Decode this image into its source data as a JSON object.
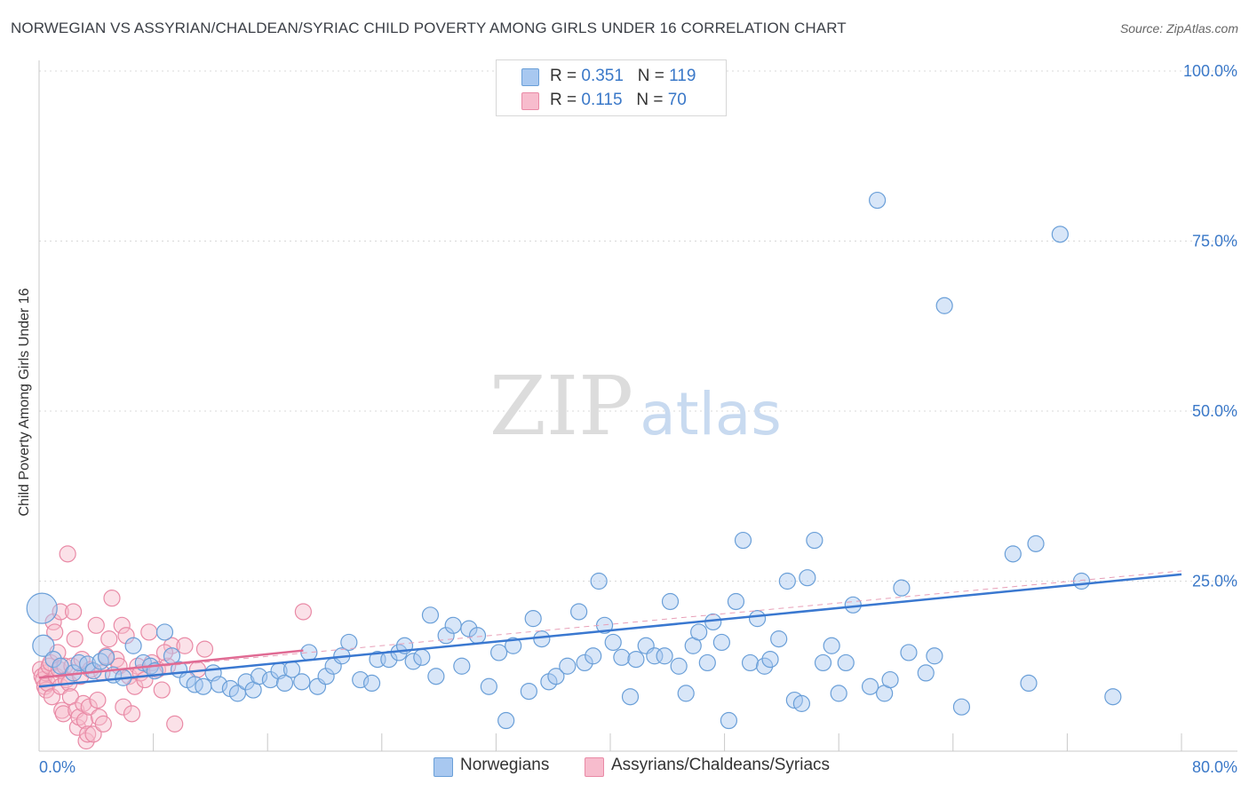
{
  "title": "NORWEGIAN VS ASSYRIAN/CHALDEAN/SYRIAC CHILD POVERTY AMONG GIRLS UNDER 16 CORRELATION CHART",
  "source": "Source: ZipAtlas.com",
  "watermark": {
    "zip": "ZIP",
    "atlas": "atlas"
  },
  "legend": {
    "r_label": "R = ",
    "n_label": "N = ",
    "rows": [
      {
        "r": "0.351",
        "n": "119",
        "color": "#a8c8f0",
        "stroke": "#6a9fd8"
      },
      {
        "r": "0.115",
        "n": "70",
        "color": "#f7bccd",
        "stroke": "#e98aa6"
      }
    ]
  },
  "bottom_legend": [
    {
      "label": "Norwegians",
      "color": "#a8c8f0",
      "stroke": "#6a9fd8"
    },
    {
      "label": "Assyrians/Chaldeans/Syriacs",
      "color": "#f7bccd",
      "stroke": "#e98aa6"
    }
  ],
  "chart_data": {
    "type": "scatter",
    "title": "NORWEGIAN VS ASSYRIAN/CHALDEAN/SYRIAC CHILD POVERTY AMONG GIRLS UNDER 16 CORRELATION CHART",
    "xlabel": "",
    "ylabel": "Child Poverty Among Girls Under 16",
    "xlim": [
      0,
      80
    ],
    "ylim": [
      0,
      100
    ],
    "x_tick_labels": [
      "0.0%",
      "80.0%"
    ],
    "y_tick_labels": [
      {
        "value": 25,
        "label": "25.0%"
      },
      {
        "value": 50,
        "label": "50.0%"
      },
      {
        "value": 75,
        "label": "75.0%"
      },
      {
        "value": 100,
        "label": "100.0%"
      }
    ],
    "grid": true,
    "series": [
      {
        "name": "Norwegians",
        "color": "#6a9fd8",
        "fill": "#a8c8f0",
        "trend": {
          "x0": 0,
          "y0": 9.5,
          "x1": 80,
          "y1": 26.0,
          "color": "#3a78d0"
        },
        "points": [
          [
            0.2,
            21.0
          ],
          [
            0.3,
            15.5
          ],
          [
            1.0,
            13.5
          ],
          [
            1.5,
            12.5
          ],
          [
            2.4,
            11.5
          ],
          [
            2.8,
            13.0
          ],
          [
            3.4,
            12.8
          ],
          [
            3.8,
            11.8
          ],
          [
            4.3,
            13.2
          ],
          [
            4.7,
            13.8
          ],
          [
            5.2,
            11.2
          ],
          [
            5.9,
            10.8
          ],
          [
            6.6,
            15.5
          ],
          [
            7.3,
            13.0
          ],
          [
            7.8,
            12.5
          ],
          [
            8.1,
            11.8
          ],
          [
            8.8,
            17.5
          ],
          [
            9.3,
            14.0
          ],
          [
            9.8,
            12.0
          ],
          [
            10.4,
            10.5
          ],
          [
            10.9,
            9.8
          ],
          [
            11.5,
            9.5
          ],
          [
            12.2,
            11.5
          ],
          [
            12.6,
            9.8
          ],
          [
            13.4,
            9.2
          ],
          [
            13.9,
            8.5
          ],
          [
            14.5,
            10.2
          ],
          [
            15.0,
            9.0
          ],
          [
            15.4,
            11.0
          ],
          [
            16.2,
            10.5
          ],
          [
            16.8,
            11.8
          ],
          [
            17.2,
            10.0
          ],
          [
            17.7,
            12.0
          ],
          [
            18.4,
            10.2
          ],
          [
            18.9,
            14.5
          ],
          [
            19.5,
            9.5
          ],
          [
            20.1,
            11.0
          ],
          [
            20.6,
            12.5
          ],
          [
            21.2,
            14.0
          ],
          [
            21.7,
            16.0
          ],
          [
            22.5,
            10.5
          ],
          [
            23.3,
            10.0
          ],
          [
            23.7,
            13.5
          ],
          [
            24.5,
            13.5
          ],
          [
            25.2,
            14.5
          ],
          [
            25.6,
            15.5
          ],
          [
            26.2,
            13.2
          ],
          [
            26.8,
            13.8
          ],
          [
            27.4,
            20.0
          ],
          [
            27.8,
            11.0
          ],
          [
            28.5,
            17.0
          ],
          [
            29.0,
            18.5
          ],
          [
            29.6,
            12.5
          ],
          [
            30.1,
            18.0
          ],
          [
            30.7,
            17.0
          ],
          [
            31.5,
            9.5
          ],
          [
            32.2,
            14.5
          ],
          [
            32.7,
            4.5
          ],
          [
            33.2,
            15.5
          ],
          [
            34.3,
            8.8
          ],
          [
            34.6,
            19.5
          ],
          [
            35.2,
            16.5
          ],
          [
            35.7,
            10.2
          ],
          [
            36.2,
            11.0
          ],
          [
            37.0,
            12.5
          ],
          [
            37.8,
            20.5
          ],
          [
            38.2,
            13.0
          ],
          [
            38.8,
            14.0
          ],
          [
            39.2,
            25.0
          ],
          [
            39.6,
            18.5
          ],
          [
            40.2,
            16.0
          ],
          [
            40.8,
            13.8
          ],
          [
            41.4,
            8.0
          ],
          [
            41.8,
            13.5
          ],
          [
            42.5,
            15.5
          ],
          [
            43.1,
            14.0
          ],
          [
            43.8,
            14.0
          ],
          [
            44.2,
            22.0
          ],
          [
            44.8,
            12.5
          ],
          [
            45.3,
            8.5
          ],
          [
            45.8,
            15.5
          ],
          [
            46.2,
            17.5
          ],
          [
            46.8,
            13.0
          ],
          [
            47.2,
            19.0
          ],
          [
            47.8,
            16.0
          ],
          [
            48.3,
            4.5
          ],
          [
            48.8,
            22.0
          ],
          [
            49.3,
            31.0
          ],
          [
            49.8,
            13.0
          ],
          [
            50.3,
            19.5
          ],
          [
            50.8,
            12.5
          ],
          [
            51.2,
            13.5
          ],
          [
            51.8,
            16.5
          ],
          [
            52.4,
            25.0
          ],
          [
            52.9,
            7.5
          ],
          [
            53.4,
            7.0
          ],
          [
            53.8,
            25.5
          ],
          [
            54.3,
            31.0
          ],
          [
            54.9,
            13.0
          ],
          [
            55.5,
            15.5
          ],
          [
            56.0,
            8.5
          ],
          [
            56.5,
            13.0
          ],
          [
            57.0,
            21.5
          ],
          [
            58.2,
            9.5
          ],
          [
            58.7,
            81.0
          ],
          [
            59.2,
            8.5
          ],
          [
            59.6,
            10.5
          ],
          [
            60.4,
            24.0
          ],
          [
            60.9,
            14.5
          ],
          [
            62.1,
            11.5
          ],
          [
            62.7,
            14.0
          ],
          [
            63.4,
            65.5
          ],
          [
            64.6,
            6.5
          ],
          [
            68.2,
            29.0
          ],
          [
            69.3,
            10.0
          ],
          [
            69.8,
            30.5
          ],
          [
            71.5,
            76.0
          ],
          [
            73.0,
            25.0
          ],
          [
            75.2,
            8.0
          ]
        ]
      },
      {
        "name": "Assyrians/Chaldeans/Syriacs",
        "color": "#e98aa6",
        "fill": "#f7bccd",
        "trend": {
          "x0": 0,
          "y0": 10.8,
          "x1": 18.5,
          "y1": 14.8,
          "color": "#e06a93",
          "dashed_extension_to": [
            80,
            26.5
          ]
        },
        "points": [
          [
            0.1,
            12.0
          ],
          [
            0.2,
            11.0
          ],
          [
            0.3,
            10.5
          ],
          [
            0.4,
            9.5
          ],
          [
            0.5,
            9.0
          ],
          [
            0.5,
            11.5
          ],
          [
            0.6,
            10.0
          ],
          [
            0.7,
            12.5
          ],
          [
            0.8,
            13.0
          ],
          [
            0.9,
            8.0
          ],
          [
            1.0,
            19.0
          ],
          [
            1.1,
            17.5
          ],
          [
            1.2,
            11.0
          ],
          [
            1.3,
            14.5
          ],
          [
            1.4,
            12.0
          ],
          [
            1.5,
            9.5
          ],
          [
            1.5,
            20.5
          ],
          [
            1.6,
            6.0
          ],
          [
            1.7,
            5.5
          ],
          [
            1.8,
            12.5
          ],
          [
            1.9,
            10.5
          ],
          [
            2.0,
            29.0
          ],
          [
            2.1,
            10.0
          ],
          [
            2.2,
            8.0
          ],
          [
            2.3,
            12.5
          ],
          [
            2.4,
            20.5
          ],
          [
            2.5,
            16.5
          ],
          [
            2.6,
            6.0
          ],
          [
            2.7,
            3.5
          ],
          [
            2.8,
            5.0
          ],
          [
            2.9,
            11.0
          ],
          [
            3.0,
            13.5
          ],
          [
            3.1,
            7.0
          ],
          [
            3.2,
            4.5
          ],
          [
            3.3,
            1.5
          ],
          [
            3.4,
            2.5
          ],
          [
            3.5,
            6.5
          ],
          [
            3.6,
            12.0
          ],
          [
            3.8,
            2.5
          ],
          [
            4.0,
            18.5
          ],
          [
            4.1,
            7.5
          ],
          [
            4.2,
            5.0
          ],
          [
            4.4,
            11.5
          ],
          [
            4.5,
            4.0
          ],
          [
            4.7,
            14.0
          ],
          [
            4.9,
            16.5
          ],
          [
            5.1,
            22.5
          ],
          [
            5.4,
            13.5
          ],
          [
            5.6,
            12.5
          ],
          [
            5.8,
            18.5
          ],
          [
            5.9,
            6.5
          ],
          [
            6.1,
            17.0
          ],
          [
            6.3,
            11.0
          ],
          [
            6.5,
            5.5
          ],
          [
            6.7,
            9.5
          ],
          [
            6.9,
            12.5
          ],
          [
            7.1,
            11.5
          ],
          [
            7.4,
            10.5
          ],
          [
            7.7,
            17.5
          ],
          [
            7.9,
            13.0
          ],
          [
            8.3,
            12.0
          ],
          [
            8.6,
            9.0
          ],
          [
            9.0,
            12.5
          ],
          [
            9.3,
            15.5
          ],
          [
            9.5,
            4.0
          ],
          [
            10.2,
            15.5
          ],
          [
            11.1,
            12.0
          ],
          [
            11.6,
            15.0
          ],
          [
            18.5,
            20.5
          ],
          [
            8.8,
            14.5
          ]
        ]
      }
    ]
  }
}
